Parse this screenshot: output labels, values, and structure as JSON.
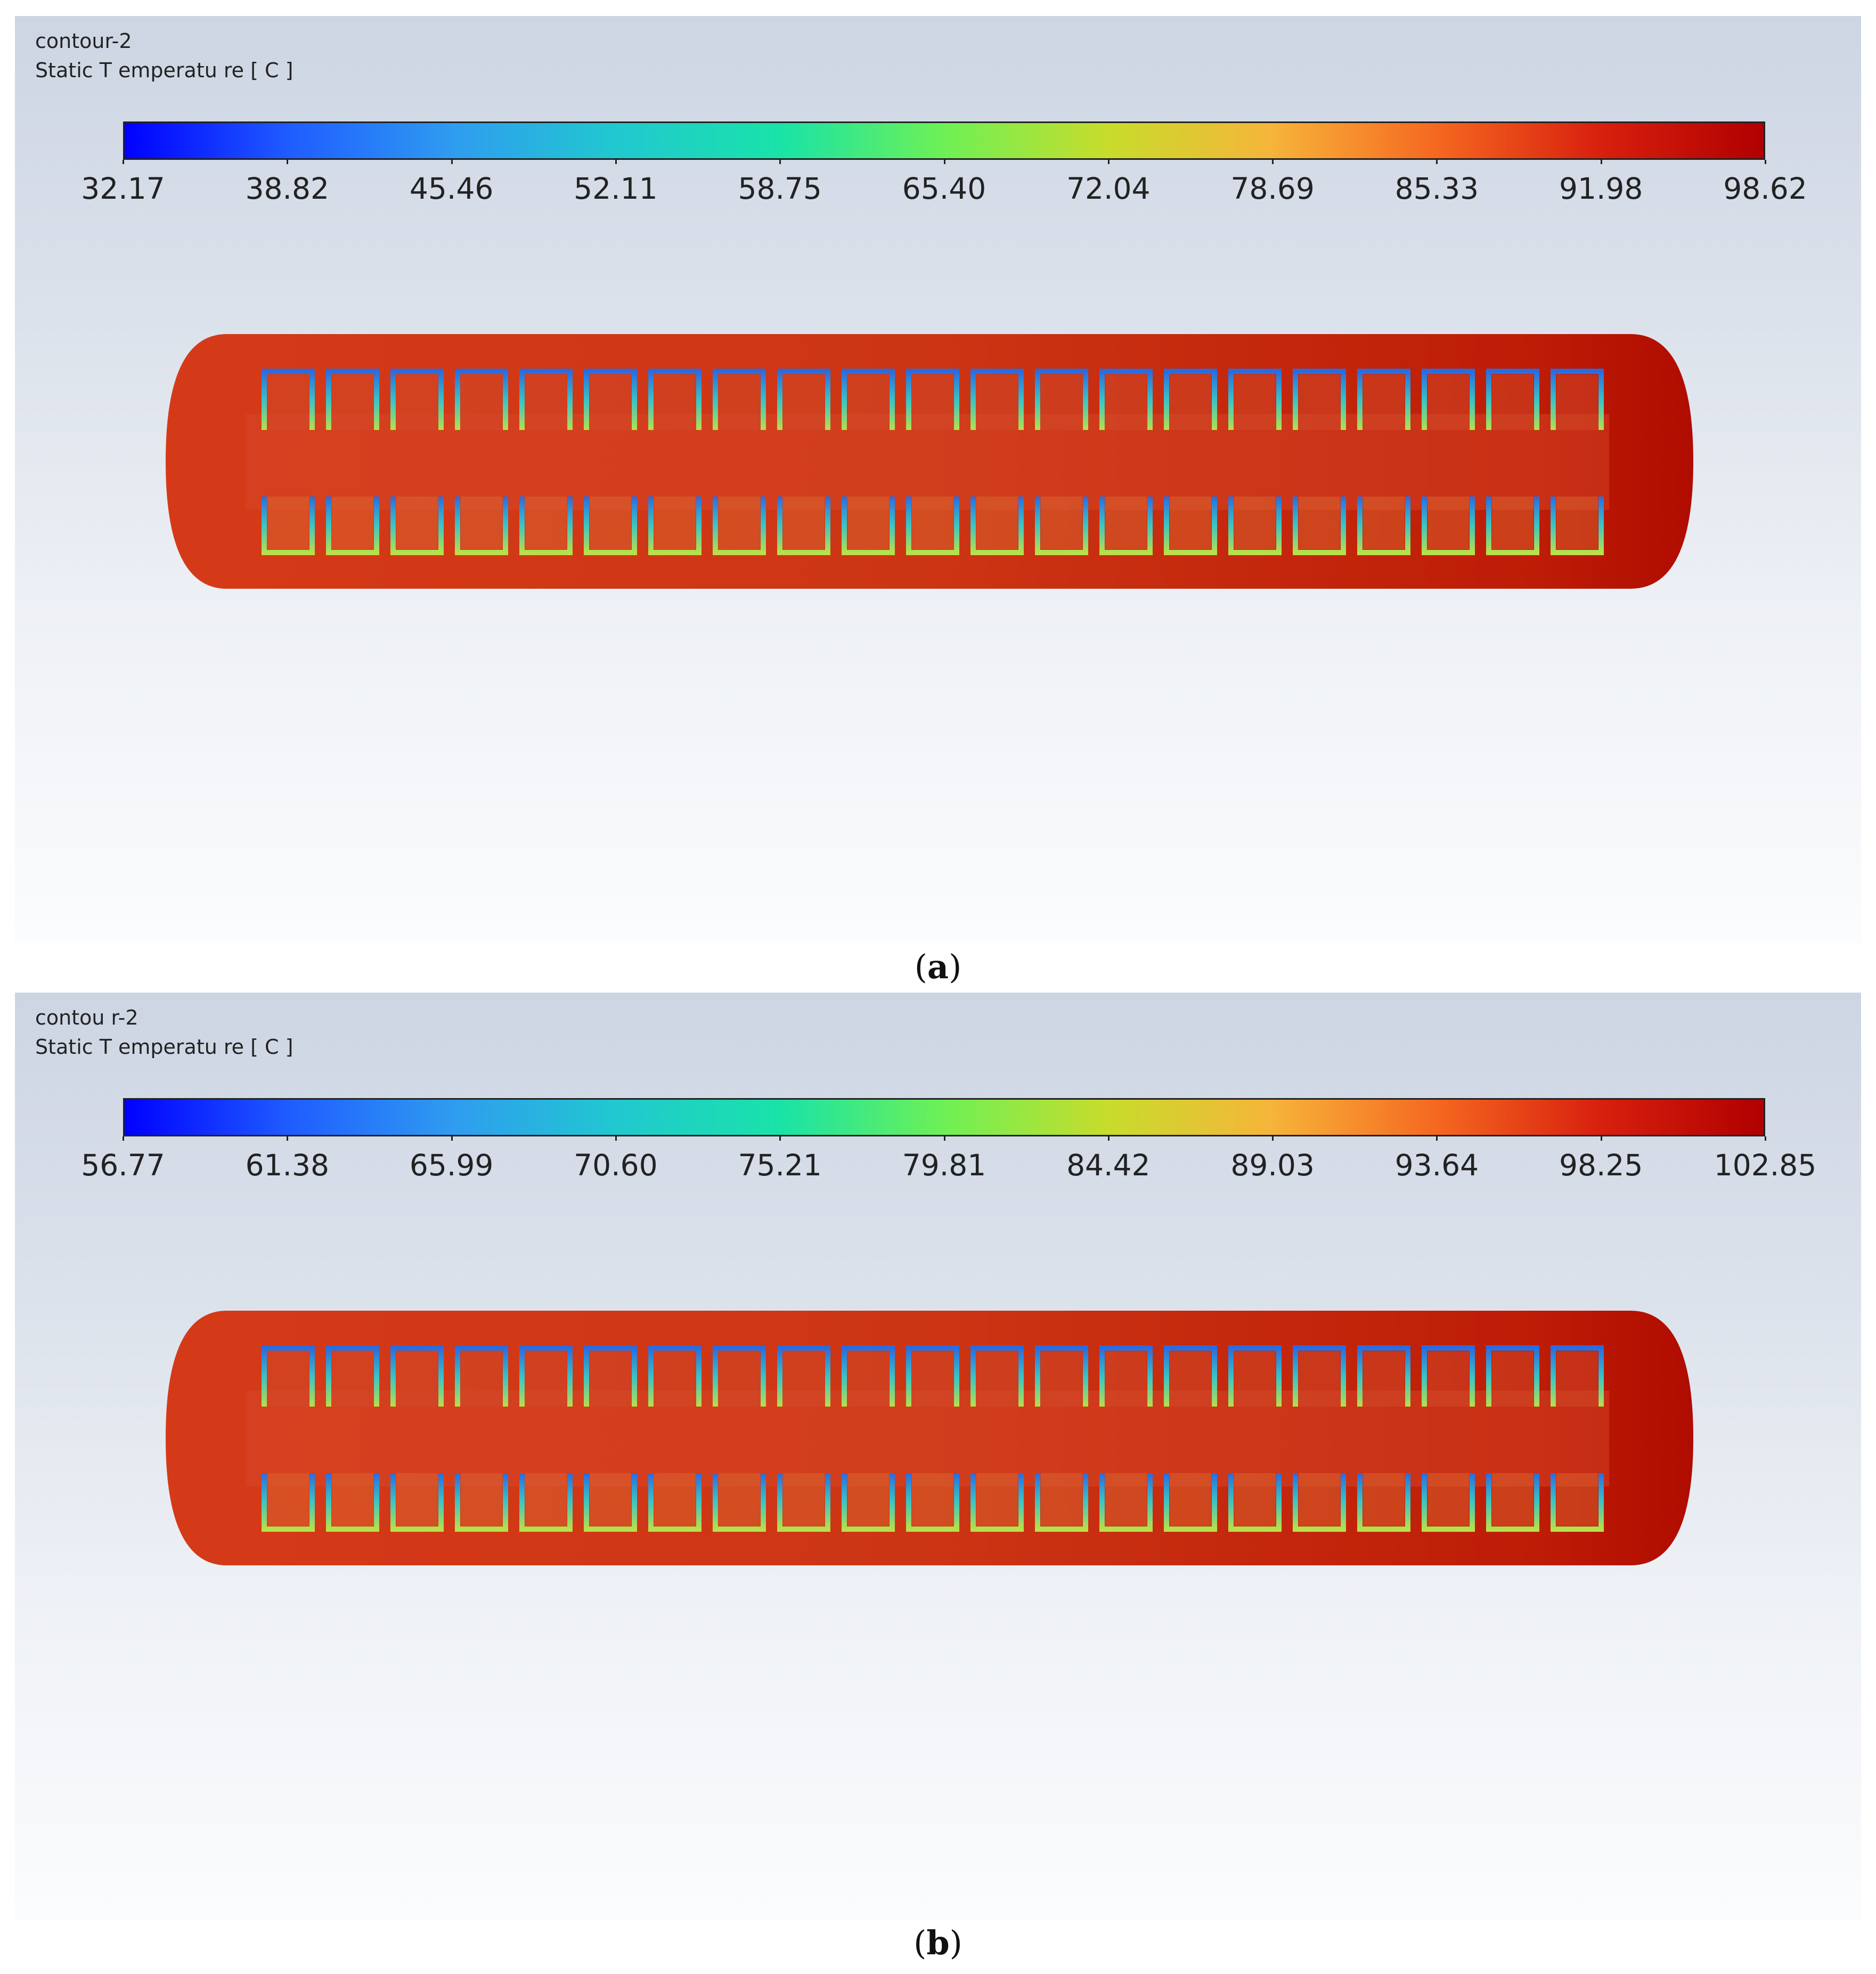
{
  "panels": [
    {
      "id": "a",
      "contour_name": "contour-2",
      "variable": "Static T emperatu re [ C ]",
      "colorbar_ticks": [
        "32.17",
        "38.82",
        "45.46",
        "52.11",
        "58.75",
        "65.40",
        "72.04",
        "78.69",
        "85.33",
        "91.98",
        "98.62"
      ],
      "caption_letter": "a"
    },
    {
      "id": "b",
      "contour_name": "contou r-2",
      "variable": "Static T emperatu re [ C ]",
      "colorbar_ticks": [
        "56.77",
        "61.38",
        "65.99",
        "70.60",
        "75.21",
        "79.81",
        "84.42",
        "89.03",
        "93.64",
        "98.25",
        "102.85"
      ],
      "caption_letter": "b"
    }
  ],
  "caption_open": "(",
  "caption_close": ")",
  "colors": {
    "background_top": "#cdd5e3",
    "background_bottom": "#fbfcfd",
    "vessel_fill": "#cc3514",
    "vessel_right": "#b00c00",
    "tube_outline": "#3ac4c4"
  },
  "tube_count_per_row": 21
}
